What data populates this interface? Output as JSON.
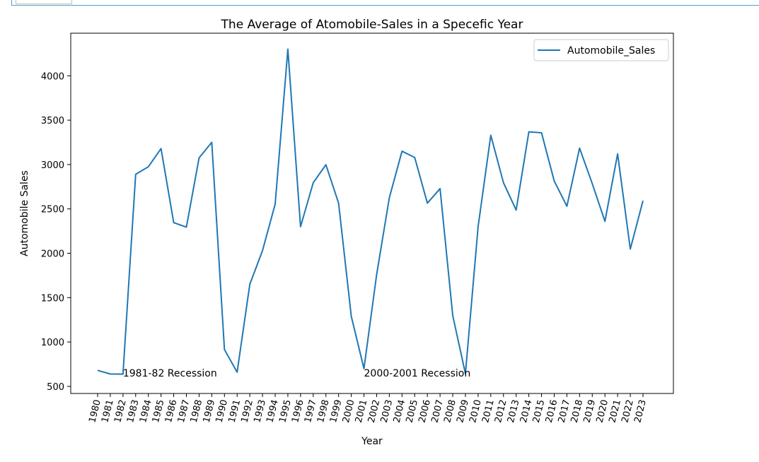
{
  "chart_data": {
    "type": "line",
    "title": "The Average of Atomobile-Sales in a Specefic Year",
    "xlabel": "Year",
    "ylabel": "Automobile Sales",
    "x": [
      "1980",
      "1981",
      "1982",
      "1983",
      "1984",
      "1985",
      "1986",
      "1987",
      "1988",
      "1989",
      "1990",
      "1991",
      "1992",
      "1993",
      "1994",
      "1995",
      "1996",
      "1997",
      "1998",
      "1999",
      "2000",
      "2001",
      "2002",
      "2003",
      "2004",
      "2005",
      "2006",
      "2007",
      "2008",
      "2009",
      "2010",
      "2011",
      "2012",
      "2013",
      "2014",
      "2015",
      "2016",
      "2017",
      "2018",
      "2019",
      "2020",
      "2021",
      "2022",
      "2023"
    ],
    "yticks": [
      500,
      1000,
      1500,
      2000,
      2500,
      3000,
      3500,
      4000
    ],
    "ylim": [
      420,
      4480
    ],
    "series": [
      {
        "name": "Automobile_Sales",
        "color": "#1f77b4",
        "values": [
          680,
          640,
          638,
          2890,
          2975,
          3180,
          2345,
          2295,
          3075,
          3250,
          915,
          660,
          1650,
          2030,
          2555,
          4300,
          2300,
          2795,
          2998,
          2565,
          1290,
          700,
          1760,
          2625,
          3150,
          3080,
          2565,
          2728,
          1298,
          643,
          2300,
          3330,
          2795,
          2487,
          3368,
          3358,
          2815,
          2530,
          3185,
          2785,
          2360,
          3120,
          2048,
          2592
        ]
      }
    ],
    "annotations": [
      {
        "text": "1981-82 Recession",
        "x": "1982",
        "y": 650
      },
      {
        "text": "2000-2001 Recession",
        "x": "2001",
        "y": 650
      }
    ],
    "legend": {
      "placement": "top-right",
      "entries": [
        "Automobile_Sales"
      ]
    },
    "grid": false
  }
}
